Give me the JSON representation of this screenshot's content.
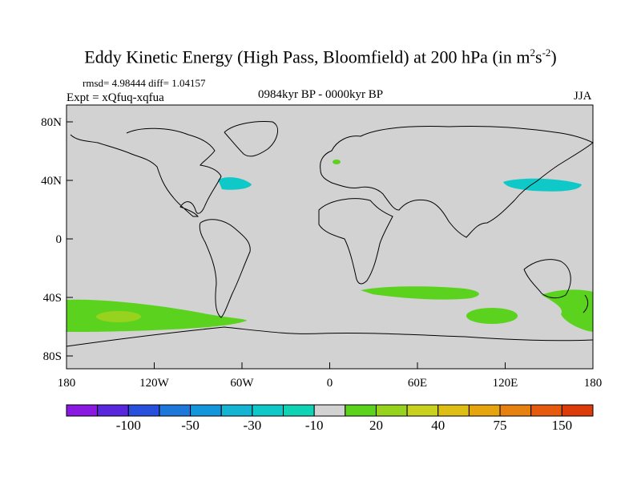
{
  "title": {
    "main": "Eddy Kinetic Energy (High Pass, Bloomfield) at 200 hPa (in m",
    "sup1": "2",
    "mid": "s",
    "sup2": "-2",
    "close": ")"
  },
  "stats": "rmsd= 4.98444 diff= 1.04157",
  "experiment": "Expt = xQfuq-xqfua",
  "period": "0984kyr BP - 0000kyr BP",
  "season": "JJA",
  "map": {
    "lat_ticks": [
      "80N",
      "40N",
      "0",
      "40S",
      "80S"
    ],
    "lon_ticks": [
      "180",
      "120W",
      "60W",
      "0",
      "60E",
      "120E",
      "180"
    ]
  },
  "colorbar": {
    "colors": [
      "#8a1ae0",
      "#5a28dc",
      "#2850dc",
      "#1e78dc",
      "#1496dc",
      "#14b4d2",
      "#0fc8c8",
      "#10d2b4",
      "#d2d2d2",
      "#5ad21e",
      "#96d21e",
      "#c8d21e",
      "#dcbe14",
      "#e6a50f",
      "#e6800f",
      "#e65a0f",
      "#dc3c0a"
    ],
    "labels": [
      "-100",
      "-50",
      "-30",
      "-10",
      "20",
      "40",
      "75",
      "150"
    ]
  }
}
